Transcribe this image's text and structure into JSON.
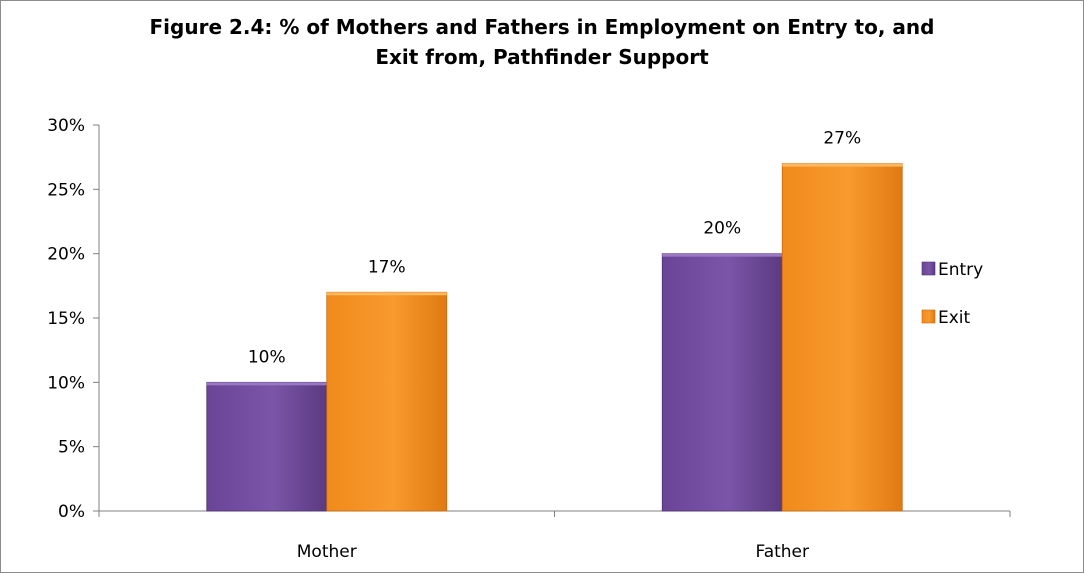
{
  "chart_data": {
    "type": "bar",
    "title": "Figure 2.4: % of Mothers and Fathers in Employment on Entry to, and\nExit    from, Pathfinder Support",
    "categories": [
      "Mother",
      "Father"
    ],
    "series": [
      {
        "name": "Entry",
        "values": [
          10,
          20
        ],
        "labels": [
          "10%",
          "20%"
        ],
        "color": "#7a52a6"
      },
      {
        "name": "Exit",
        "values": [
          17,
          27
        ],
        "labels": [
          "17%",
          "27%"
        ],
        "color": "#f6921e"
      }
    ],
    "ylim": [
      0,
      30
    ],
    "yticks": [
      0,
      5,
      10,
      15,
      20,
      25,
      30
    ],
    "ytick_labels": [
      "0%",
      "5%",
      "10%",
      "15%",
      "20%",
      "25%",
      "30%"
    ],
    "xlabel": "",
    "ylabel": "",
    "grid": false,
    "legend_position": "right"
  }
}
